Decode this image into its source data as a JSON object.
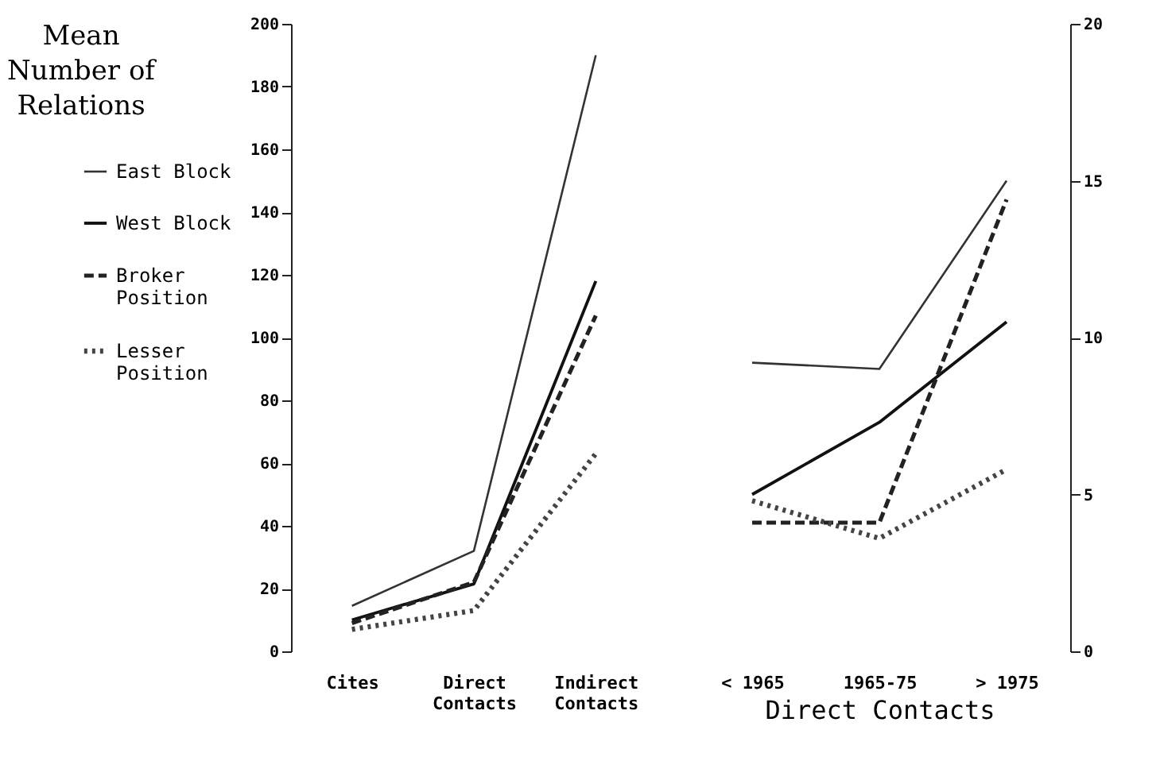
{
  "chart_data": [
    {
      "type": "line",
      "legend_title": "Mean Number of Relations",
      "categories": [
        "Cites",
        "Direct Contacts",
        "Indirect Contacts"
      ],
      "series": [
        {
          "name": "East Block",
          "color": "#333333",
          "line_style": "solid",
          "values": [
            14.5,
            32,
            190
          ]
        },
        {
          "name": "West Block",
          "color": "#111111",
          "line_style": "solid",
          "values": [
            10,
            21.5,
            118
          ]
        },
        {
          "name": "Broker Position",
          "color": "#222222",
          "line_style": "dashed",
          "values": [
            9,
            22,
            107
          ]
        },
        {
          "name": "Lesser Position",
          "color": "#444444",
          "line_style": "dotted",
          "values": [
            7,
            13,
            63
          ]
        }
      ],
      "ylim": [
        0,
        200
      ],
      "yticks": [
        0,
        20,
        40,
        60,
        80,
        100,
        120,
        140,
        160,
        180,
        200
      ],
      "grid": false,
      "legend": "left"
    },
    {
      "type": "line",
      "xlabel": "Direct Contacts",
      "categories": [
        "< 1965",
        "1965-75",
        "> 1975"
      ],
      "series": [
        {
          "color": "#333333",
          "line_style": "solid",
          "values": [
            9.2,
            9.0,
            15.0
          ]
        },
        {
          "color": "#111111",
          "line_style": "solid",
          "values": [
            5.0,
            7.3,
            10.5
          ]
        },
        {
          "color": "#222222",
          "line_style": "dashed",
          "values": [
            4.1,
            4.1,
            14.4
          ]
        },
        {
          "color": "#444444",
          "line_style": "dotted",
          "values": [
            4.8,
            3.6,
            5.8
          ]
        }
      ],
      "ylim": [
        0,
        20
      ],
      "yticks": [
        0,
        5,
        10,
        15,
        20
      ],
      "grid": false,
      "legend": false
    }
  ]
}
